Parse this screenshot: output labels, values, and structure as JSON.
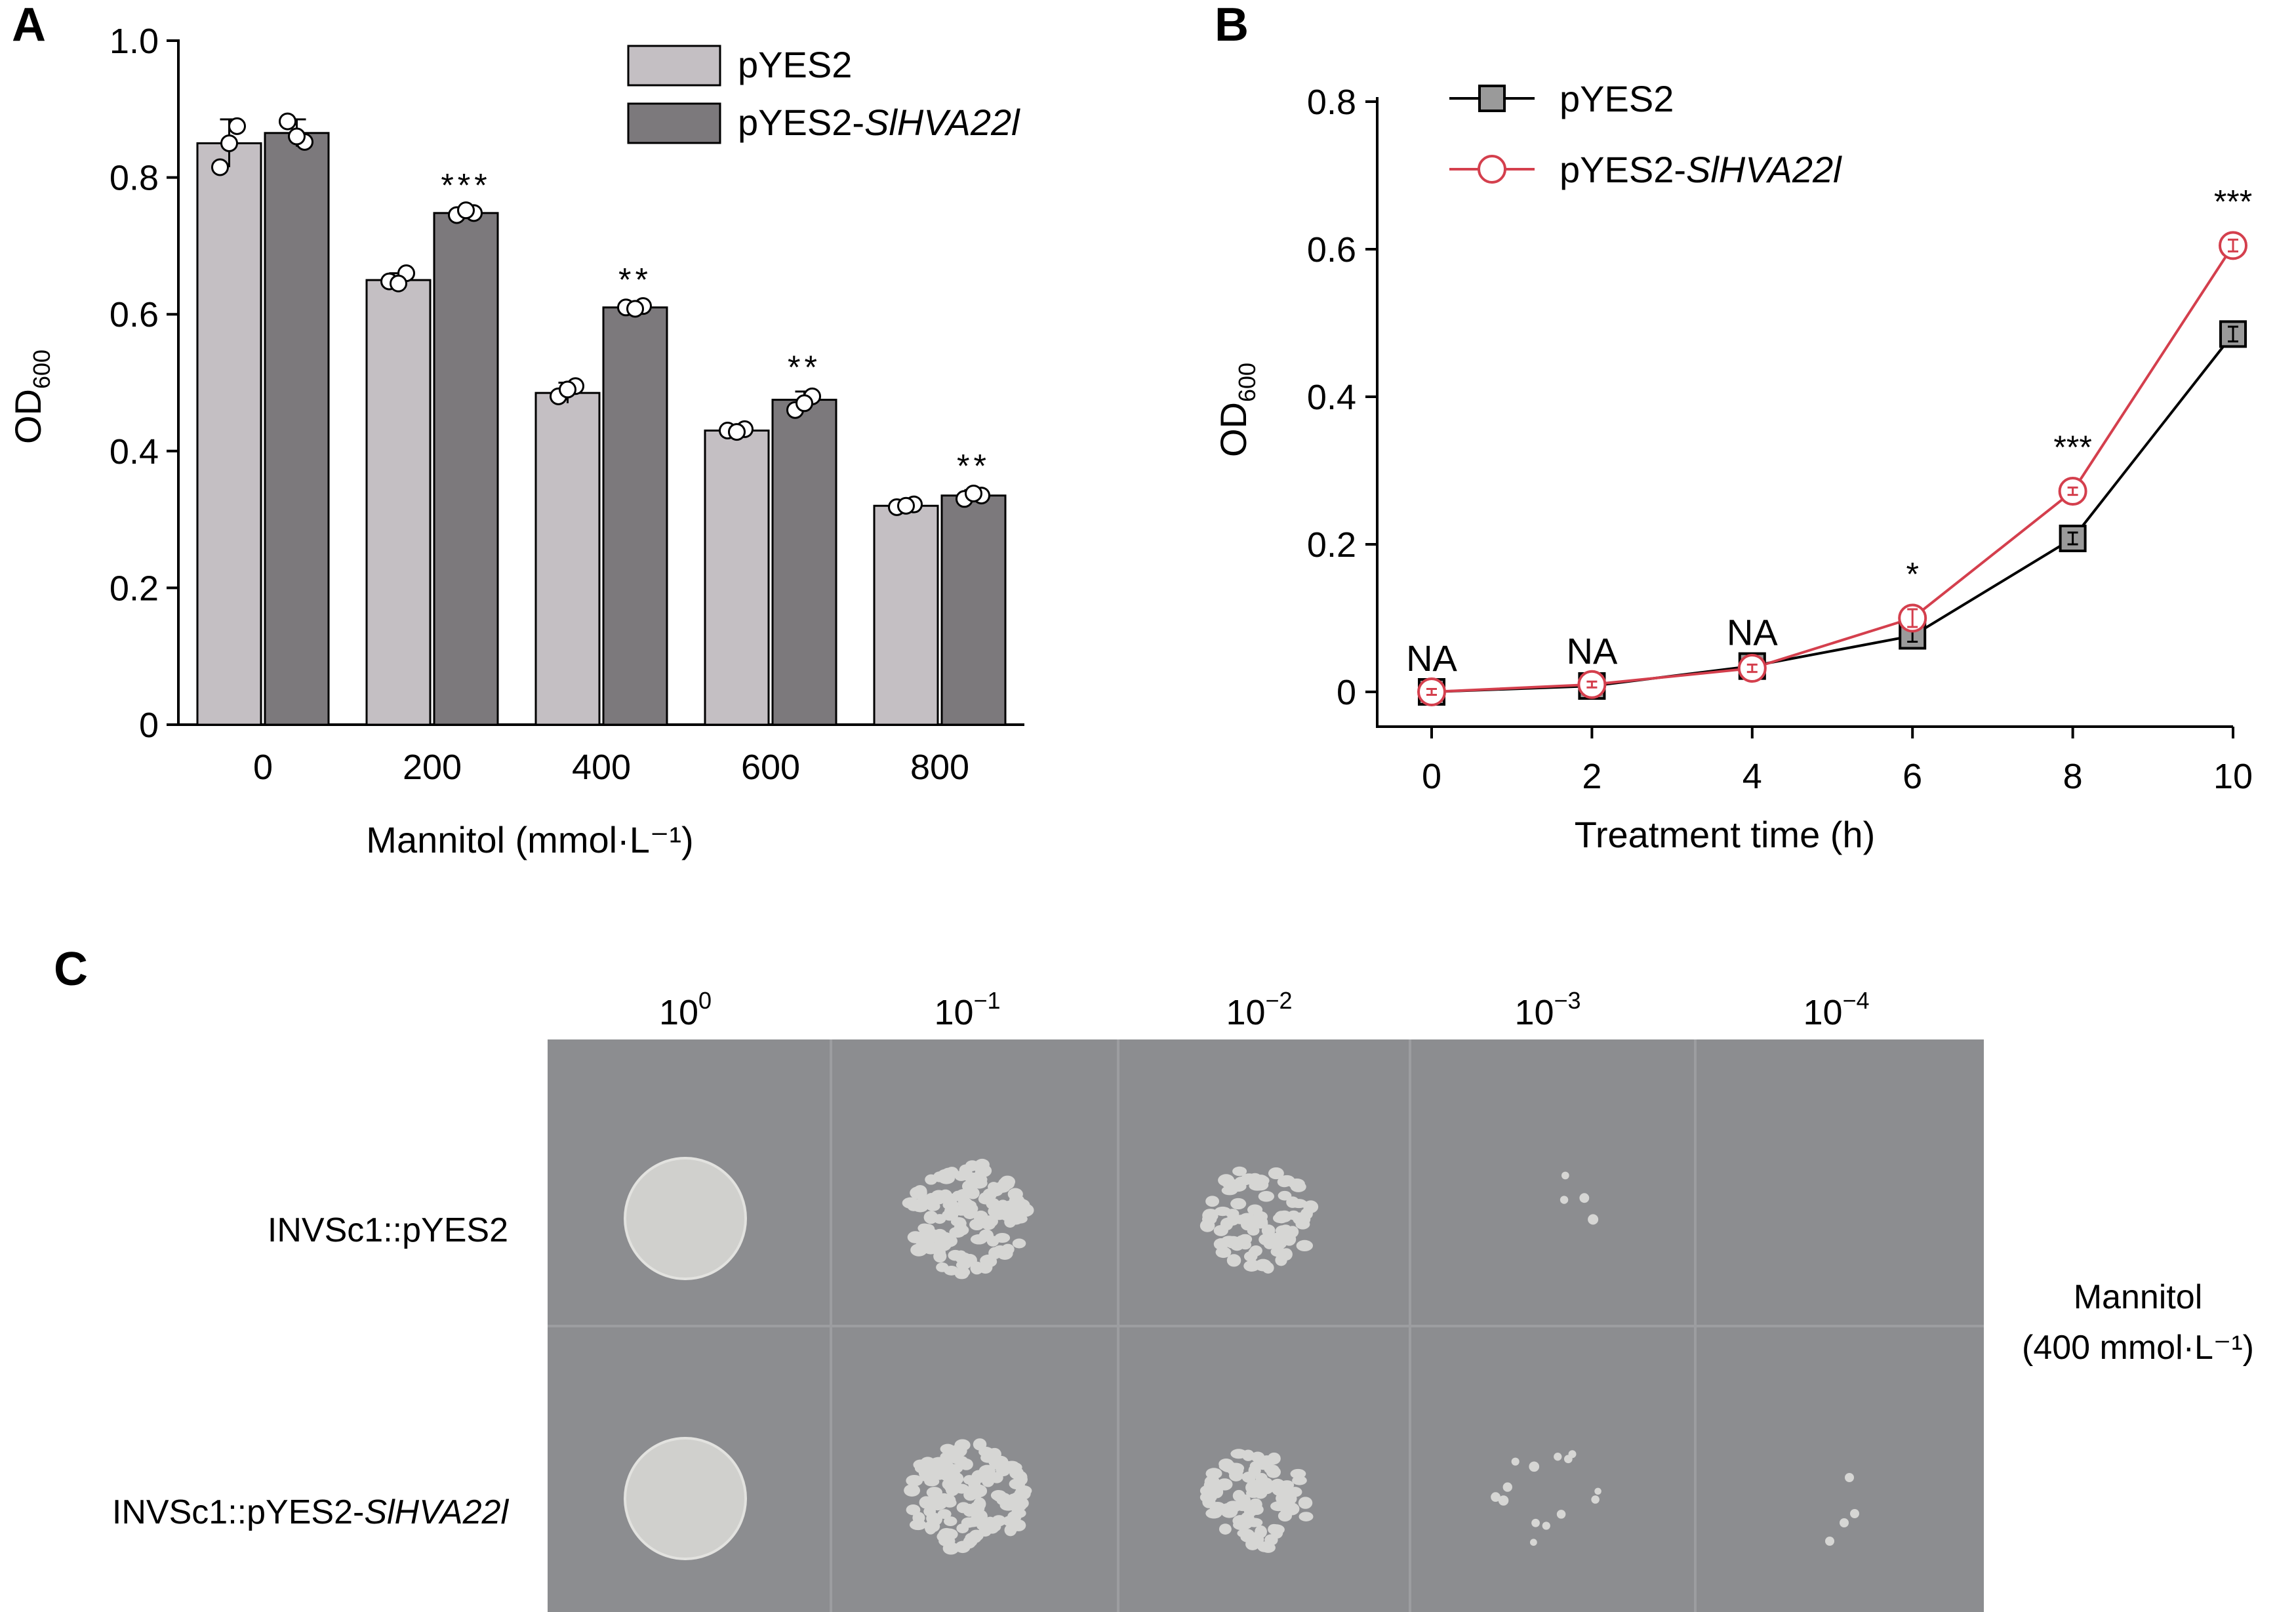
{
  "panels": {
    "a": {
      "letter": "A"
    },
    "b": {
      "letter": "B"
    },
    "c": {
      "letter": "C"
    }
  },
  "chart_data": [
    {
      "type": "bar",
      "categories": [
        "0",
        "200",
        "400",
        "600",
        "800"
      ],
      "series": [
        {
          "name_plain": "pYES2",
          "values": [
            0.85,
            0.65,
            0.485,
            0.43,
            0.32
          ],
          "errors": [
            0.035,
            0.01,
            0.015,
            0.005,
            0.005
          ],
          "color": "#c4bfc3"
        },
        {
          "name_plain": "pYES2-",
          "name_italic": "SlHVA22l",
          "values": [
            0.865,
            0.748,
            0.61,
            0.475,
            0.335
          ],
          "errors": [
            0.02,
            0.005,
            0.005,
            0.012,
            0.008
          ],
          "color": "#7c797c"
        }
      ],
      "points": [
        [
          [
            0.815,
            0.875,
            0.85
          ],
          [
            0.882,
            0.852,
            0.86
          ]
        ],
        [
          [
            0.648,
            0.66,
            0.645
          ],
          [
            0.745,
            0.748,
            0.752
          ]
        ],
        [
          [
            0.48,
            0.495,
            0.49
          ],
          [
            0.61,
            0.612,
            0.608
          ]
        ],
        [
          [
            0.43,
            0.432,
            0.428
          ],
          [
            0.46,
            0.48,
            0.47
          ]
        ],
        [
          [
            0.318,
            0.322,
            0.32
          ],
          [
            0.33,
            0.335,
            0.338
          ]
        ]
      ],
      "significance": [
        "",
        "***",
        "**",
        "**",
        "**"
      ],
      "xlabel": "Mannitol (mmol·L⁻¹)",
      "ylabel_main": "OD",
      "ylabel_sub": "600",
      "ylim": [
        0,
        1.0
      ],
      "yticks": [
        0,
        0.2,
        0.4,
        0.6,
        0.8,
        1.0
      ],
      "ytick_labels": [
        "0",
        "0.2",
        "0.4",
        "0.6",
        "0.8",
        "1.0"
      ],
      "legend_position": "top-right"
    },
    {
      "type": "line",
      "x": [
        0,
        2,
        4,
        6,
        8,
        10
      ],
      "series": [
        {
          "name_plain": "pYES2",
          "values": [
            0,
            0.008,
            0.035,
            0.076,
            0.208,
            0.485
          ],
          "errors": [
            0.004,
            0.004,
            0.006,
            0.008,
            0.008,
            0.01
          ],
          "color": "#000000",
          "marker": "square"
        },
        {
          "name_plain": "pYES2-",
          "name_italic": "SlHVA22l",
          "values": [
            0,
            0.01,
            0.032,
            0.1,
            0.272,
            0.605
          ],
          "errors": [
            0.004,
            0.004,
            0.005,
            0.012,
            0.005,
            0.008
          ],
          "color": "#d43f4d",
          "marker": "circle"
        }
      ],
      "annotations": [
        "NA",
        "NA",
        "NA",
        "*",
        "***",
        "***"
      ],
      "xlabel": "Treatment time (h)",
      "ylabel_main": "OD",
      "ylabel_sub": "600",
      "ylim": [
        0,
        0.8
      ],
      "yticks": [
        0,
        0.2,
        0.4,
        0.6,
        0.8
      ],
      "ytick_labels": [
        "0",
        "0.2",
        "0.4",
        "0.6",
        "0.8"
      ],
      "xticks": [
        0,
        2,
        4,
        6,
        8,
        10
      ],
      "legend_position": "top-left"
    }
  ],
  "plate": {
    "dilutions": [
      {
        "base": "10",
        "exp": "0"
      },
      {
        "base": "10",
        "exp": "−1"
      },
      {
        "base": "10",
        "exp": "−2"
      },
      {
        "base": "10",
        "exp": "−3"
      },
      {
        "base": "10",
        "exp": "−4"
      }
    ],
    "rows": [
      {
        "label_plain": "INVSc1::pYES2",
        "label_italic": ""
      },
      {
        "label_plain": "INVSc1::pYES2-",
        "label_italic": "SlHVA22l"
      }
    ],
    "condition_line1": "Mannitol",
    "condition_line2": "(400 mmol·L⁻¹)",
    "colors": {
      "plate": "#8c8d90",
      "colony": "#d6d6d4"
    }
  }
}
